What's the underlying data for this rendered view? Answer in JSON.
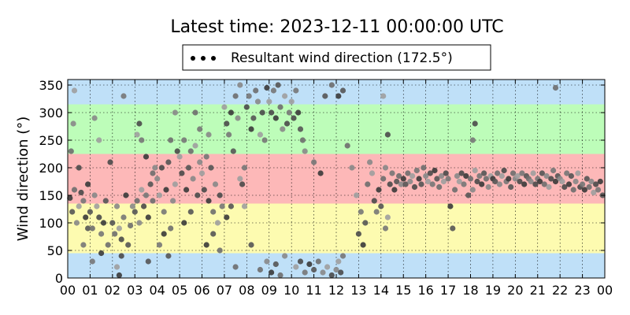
{
  "chart_data": {
    "type": "scatter",
    "title": "Latest time: 2023-12-11 00:00:00 UTC",
    "ylabel": "Wind direction (°)",
    "xlabel": "",
    "xlim": [
      0,
      24
    ],
    "ylim": [
      0,
      360
    ],
    "x_ticks": [
      "00",
      "01",
      "02",
      "03",
      "04",
      "05",
      "06",
      "07",
      "08",
      "09",
      "10",
      "11",
      "12",
      "13",
      "14",
      "15",
      "16",
      "17",
      "18",
      "19",
      "20",
      "21",
      "22",
      "23",
      "00"
    ],
    "y_ticks": [
      "0",
      "50",
      "100",
      "150",
      "200",
      "250",
      "300",
      "350"
    ],
    "grid": true,
    "legend": {
      "label": "Resultant wind direction (172.5°)",
      "placement": "top-center"
    },
    "bands": [
      {
        "from": 0,
        "to": 45,
        "color": "#bfe0f8"
      },
      {
        "from": 45,
        "to": 135,
        "color": "#fdfbb0"
      },
      {
        "from": 135,
        "to": 225,
        "color": "#fdb8b8"
      },
      {
        "from": 225,
        "to": 315,
        "color": "#bdfdb9"
      },
      {
        "from": 315,
        "to": 360,
        "color": "#bfe0f8"
      }
    ],
    "series": [
      {
        "name": "Resultant wind direction (172.5°)",
        "points": [
          [
            0.1,
            145
          ],
          [
            0.2,
            120
          ],
          [
            0.3,
            160
          ],
          [
            0.4,
            100
          ],
          [
            0.5,
            130
          ],
          [
            0.6,
            155
          ],
          [
            0.7,
            140
          ],
          [
            0.8,
            110
          ],
          [
            0.9,
            90
          ],
          [
            0.15,
            230
          ],
          [
            0.25,
            280
          ],
          [
            0.3,
            340
          ],
          [
            0.5,
            200
          ],
          [
            0.7,
            60
          ],
          [
            0.9,
            170
          ],
          [
            1.0,
            120
          ],
          [
            1.1,
            90
          ],
          [
            1.2,
            150
          ],
          [
            1.3,
            130
          ],
          [
            1.4,
            110
          ],
          [
            1.5,
            80
          ],
          [
            1.6,
            100
          ],
          [
            1.7,
            140
          ],
          [
            1.8,
            60
          ],
          [
            1.2,
            290
          ],
          [
            1.4,
            250
          ],
          [
            1.9,
            210
          ],
          [
            1.1,
            30
          ],
          [
            1.5,
            45
          ],
          [
            2.0,
            100
          ],
          [
            2.1,
            80
          ],
          [
            2.2,
            130
          ],
          [
            2.3,
            90
          ],
          [
            2.4,
            70
          ],
          [
            2.5,
            110
          ],
          [
            2.6,
            150
          ],
          [
            2.7,
            60
          ],
          [
            2.8,
            95
          ],
          [
            2.9,
            130
          ],
          [
            2.2,
            20
          ],
          [
            2.4,
            40
          ],
          [
            2.5,
            330
          ],
          [
            2.3,
            5
          ],
          [
            3.0,
            120
          ],
          [
            3.1,
            140
          ],
          [
            3.2,
            100
          ],
          [
            3.3,
            160
          ],
          [
            3.4,
            130
          ],
          [
            3.5,
            150
          ],
          [
            3.6,
            110
          ],
          [
            3.7,
            170
          ],
          [
            3.8,
            140
          ],
          [
            3.9,
            200
          ],
          [
            3.1,
            260
          ],
          [
            3.2,
            280
          ],
          [
            3.3,
            250
          ],
          [
            3.5,
            220
          ],
          [
            3.6,
            30
          ],
          [
            3.8,
            190
          ],
          [
            4.0,
            180
          ],
          [
            4.1,
            150
          ],
          [
            4.2,
            200
          ],
          [
            4.3,
            120
          ],
          [
            4.4,
            160
          ],
          [
            4.5,
            210
          ],
          [
            4.6,
            90
          ],
          [
            4.7,
            140
          ],
          [
            4.8,
            170
          ],
          [
            4.9,
            230
          ],
          [
            4.1,
            60
          ],
          [
            4.3,
            80
          ],
          [
            4.5,
            40
          ],
          [
            4.6,
            250
          ],
          [
            4.8,
            300
          ],
          [
            5.0,
            220
          ],
          [
            5.1,
            190
          ],
          [
            5.2,
            250
          ],
          [
            5.3,
            160
          ],
          [
            5.4,
            200
          ],
          [
            5.5,
            230
          ],
          [
            5.6,
            180
          ],
          [
            5.7,
            240
          ],
          [
            5.8,
            150
          ],
          [
            5.9,
            270
          ],
          [
            5.2,
            100
          ],
          [
            5.5,
            120
          ],
          [
            5.7,
            300
          ],
          [
            5.9,
            210
          ],
          [
            6.0,
            190
          ],
          [
            6.1,
            160
          ],
          [
            6.2,
            220
          ],
          [
            6.3,
            140
          ],
          [
            6.4,
            200
          ],
          [
            6.5,
            120
          ],
          [
            6.6,
            170
          ],
          [
            6.7,
            100
          ],
          [
            6.8,
            150
          ],
          [
            6.9,
            130
          ],
          [
            6.2,
            60
          ],
          [
            6.5,
            80
          ],
          [
            6.8,
            50
          ],
          [
            6.3,
            260
          ],
          [
            7.0,
            310
          ],
          [
            7.1,
            280
          ],
          [
            7.2,
            260
          ],
          [
            7.3,
            300
          ],
          [
            7.4,
            230
          ],
          [
            7.5,
            330
          ],
          [
            7.6,
            290
          ],
          [
            7.7,
            180
          ],
          [
            7.8,
            170
          ],
          [
            7.9,
            200
          ],
          [
            7.1,
            110
          ],
          [
            7.3,
            130
          ],
          [
            7.5,
            20
          ],
          [
            7.7,
            350
          ],
          [
            7.9,
            130
          ],
          [
            8.0,
            310
          ],
          [
            8.1,
            330
          ],
          [
            8.2,
            270
          ],
          [
            8.3,
            290
          ],
          [
            8.4,
            340
          ],
          [
            8.5,
            320
          ],
          [
            8.6,
            260
          ],
          [
            8.7,
            300
          ],
          [
            8.8,
            250
          ],
          [
            8.9,
            345
          ],
          [
            8.2,
            60
          ],
          [
            8.6,
            15
          ],
          [
            8.9,
            30
          ],
          [
            9.0,
            320
          ],
          [
            9.1,
            300
          ],
          [
            9.2,
            340
          ],
          [
            9.3,
            290
          ],
          [
            9.4,
            350
          ],
          [
            9.5,
            310
          ],
          [
            9.6,
            270
          ],
          [
            9.7,
            330
          ],
          [
            9.8,
            280
          ],
          [
            9.9,
            300
          ],
          [
            9.1,
            10
          ],
          [
            9.3,
            25
          ],
          [
            9.5,
            5
          ],
          [
            9.7,
            40
          ],
          [
            10.0,
            320
          ],
          [
            10.1,
            290
          ],
          [
            10.2,
            340
          ],
          [
            10.3,
            300
          ],
          [
            10.4,
            270
          ],
          [
            10.5,
            250
          ],
          [
            10.6,
            230
          ],
          [
            10.2,
            20
          ],
          [
            10.4,
            30
          ],
          [
            10.6,
            10
          ],
          [
            10.8,
            25
          ],
          [
            11.0,
            15
          ],
          [
            11.2,
            30
          ],
          [
            11.4,
            10
          ],
          [
            11.6,
            20
          ],
          [
            11.8,
            5
          ],
          [
            11.0,
            210
          ],
          [
            11.3,
            190
          ],
          [
            11.5,
            330
          ],
          [
            11.8,
            350
          ],
          [
            12.0,
            15
          ],
          [
            12.1,
            30
          ],
          [
            12.2,
            10
          ],
          [
            12.3,
            40
          ],
          [
            12.1,
            330
          ],
          [
            12.3,
            340
          ],
          [
            12.5,
            240
          ],
          [
            12.7,
            200
          ],
          [
            12.9,
            150
          ],
          [
            13.0,
            80
          ],
          [
            13.1,
            120
          ],
          [
            13.2,
            60
          ],
          [
            13.3,
            100
          ],
          [
            13.4,
            170
          ],
          [
            13.5,
            210
          ],
          [
            13.6,
            190
          ],
          [
            13.7,
            140
          ],
          [
            13.8,
            120
          ],
          [
            13.9,
            160
          ],
          [
            14.0,
            130
          ],
          [
            14.1,
            180
          ],
          [
            14.2,
            200
          ],
          [
            14.3,
            110
          ],
          [
            14.4,
            170
          ],
          [
            14.5,
            190
          ],
          [
            14.6,
            160
          ],
          [
            14.7,
            175
          ],
          [
            14.8,
            185
          ],
          [
            14.9,
            170
          ],
          [
            14.1,
            330
          ],
          [
            14.3,
            260
          ],
          [
            14.2,
            90
          ],
          [
            15.0,
            180
          ],
          [
            15.1,
            170
          ],
          [
            15.2,
            190
          ],
          [
            15.3,
            175
          ],
          [
            15.4,
            185
          ],
          [
            15.5,
            165
          ],
          [
            15.6,
            195
          ],
          [
            15.7,
            180
          ],
          [
            15.8,
            170
          ],
          [
            15.9,
            200
          ],
          [
            16.0,
            185
          ],
          [
            16.1,
            175
          ],
          [
            16.2,
            190
          ],
          [
            16.3,
            170
          ],
          [
            16.4,
            195
          ],
          [
            16.5,
            180
          ],
          [
            16.6,
            165
          ],
          [
            16.7,
            185
          ],
          [
            16.8,
            175
          ],
          [
            16.9,
            190
          ],
          [
            17.0,
            180
          ],
          [
            17.1,
            130
          ],
          [
            17.2,
            90
          ],
          [
            17.3,
            160
          ],
          [
            17.4,
            185
          ],
          [
            17.5,
            175
          ],
          [
            17.6,
            190
          ],
          [
            17.7,
            170
          ],
          [
            17.8,
            185
          ],
          [
            17.9,
            150
          ],
          [
            18.0,
            180
          ],
          [
            18.1,
            160
          ],
          [
            18.2,
            195
          ],
          [
            18.3,
            175
          ],
          [
            18.4,
            185
          ],
          [
            18.5,
            170
          ],
          [
            18.6,
            190
          ],
          [
            18.7,
            180
          ],
          [
            18.8,
            165
          ],
          [
            18.9,
            185
          ],
          [
            18.2,
            280
          ],
          [
            18.1,
            250
          ],
          [
            19.0,
            180
          ],
          [
            19.1,
            175
          ],
          [
            19.2,
            190
          ],
          [
            19.3,
            170
          ],
          [
            19.4,
            185
          ],
          [
            19.5,
            195
          ],
          [
            19.6,
            175
          ],
          [
            19.7,
            180
          ],
          [
            19.8,
            165
          ],
          [
            19.9,
            190
          ],
          [
            20.0,
            180
          ],
          [
            20.1,
            185
          ],
          [
            20.2,
            175
          ],
          [
            20.3,
            190
          ],
          [
            20.4,
            170
          ],
          [
            20.5,
            185
          ],
          [
            20.6,
            180
          ],
          [
            20.7,
            175
          ],
          [
            20.8,
            190
          ],
          [
            20.9,
            170
          ],
          [
            21.0,
            180
          ],
          [
            21.1,
            175
          ],
          [
            21.2,
            190
          ],
          [
            21.3,
            170
          ],
          [
            21.4,
            185
          ],
          [
            21.5,
            165
          ],
          [
            21.6,
            180
          ],
          [
            21.7,
            195
          ],
          [
            21.8,
            175
          ],
          [
            21.9,
            185
          ],
          [
            21.8,
            345
          ],
          [
            22.0,
            180
          ],
          [
            22.1,
            175
          ],
          [
            22.2,
            165
          ],
          [
            22.3,
            190
          ],
          [
            22.4,
            170
          ],
          [
            22.5,
            185
          ],
          [
            22.6,
            160
          ],
          [
            22.7,
            175
          ],
          [
            22.8,
            190
          ],
          [
            22.9,
            165
          ],
          [
            23.0,
            170
          ],
          [
            23.1,
            160
          ],
          [
            23.2,
            180
          ],
          [
            23.3,
            165
          ],
          [
            23.4,
            175
          ],
          [
            23.5,
            155
          ],
          [
            23.6,
            170
          ],
          [
            23.7,
            160
          ],
          [
            23.8,
            175
          ],
          [
            23.9,
            150
          ]
        ]
      }
    ]
  }
}
